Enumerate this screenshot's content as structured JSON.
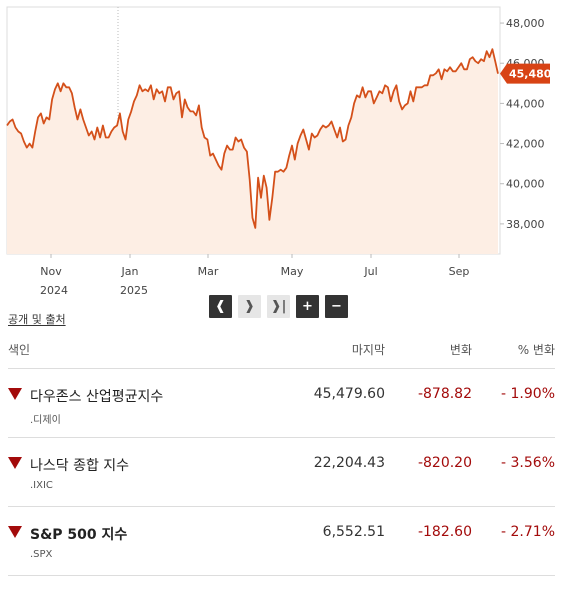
{
  "chart": {
    "y_ticks": [
      "48,000",
      "46,000",
      "44,000",
      "42,000",
      "40,000",
      "38,000"
    ],
    "x_months": [
      "Nov",
      "Jan",
      "Mar",
      "May",
      "Jul",
      "Sep"
    ],
    "x_years": [
      "2024",
      "2025"
    ],
    "last_value_label": "45,480",
    "colors": {
      "line": "#d4501a",
      "fill": "#fdeee4",
      "tag": "#d84315",
      "grid": "#e3e3e3"
    }
  },
  "chart_data": {
    "type": "area",
    "title": "",
    "xlabel": "",
    "ylabel": "",
    "ylim": [
      36500,
      48800
    ],
    "y_ticks": [
      38000,
      40000,
      42000,
      44000,
      46000,
      48000
    ],
    "x_axis": "2024-10 to 2025-10",
    "grid": "vertical at year boundary only, horizontal off",
    "series": [
      {
        "values": [
          42900,
          43100,
          43200,
          42800,
          42600,
          42500,
          42100,
          41800,
          42000,
          41800,
          42600,
          43300,
          43500,
          43000,
          43300,
          43200,
          44200,
          44700,
          45000,
          44600,
          45000,
          44800,
          44800,
          44500,
          43800,
          43200,
          43700,
          43200,
          42800,
          42400,
          42600,
          42200,
          42800,
          42300,
          42900,
          42300,
          42300,
          42600,
          42800,
          42900,
          43500,
          42600,
          42200,
          43200,
          43600,
          44100,
          44400,
          44900,
          44600,
          44700,
          44600,
          44900,
          44200,
          44700,
          44500,
          44600,
          44100,
          44800,
          44800,
          44200,
          44500,
          44600,
          43300,
          44200,
          43800,
          43600,
          43600,
          43400,
          43900,
          42800,
          42300,
          42200,
          41400,
          41500,
          41200,
          40900,
          40700,
          41500,
          41900,
          41700,
          41700,
          42300,
          42100,
          42200,
          41800,
          41600,
          40200,
          38300,
          37800,
          40300,
          39300,
          40400,
          39800,
          38200,
          39300,
          40600,
          40600,
          40700,
          40600,
          40800,
          41400,
          41900,
          41200,
          42000,
          42400,
          42700,
          42200,
          41700,
          42500,
          42300,
          42400,
          42700,
          42900,
          42800,
          42900,
          43100,
          42700,
          42300,
          42800,
          42100,
          42200,
          42900,
          43300,
          44000,
          44400,
          44300,
          44800,
          44300,
          44600,
          44600,
          44000,
          44300,
          44600,
          44500,
          44900,
          44800,
          44100,
          44600,
          44900,
          44100,
          43700,
          43900,
          44000,
          44600,
          44100,
          44800,
          44800,
          44800,
          44900,
          44900,
          45400,
          45400,
          45500,
          45700,
          45200,
          45700,
          45600,
          45800,
          45600,
          45600,
          45800,
          46000,
          45700,
          45700,
          46200,
          46300,
          46100,
          46000,
          46200,
          46100,
          46600,
          46300,
          46700,
          46100,
          45480
        ]
      }
    ],
    "last_value": 45480
  },
  "controls": {
    "prev": "❰",
    "next": "❱",
    "end": "❱|",
    "zoom_in": "+",
    "zoom_out": "−"
  },
  "share_link": "공개 및 출처",
  "table": {
    "headers": {
      "index": "색인",
      "price": "마지막",
      "change": "변화",
      "pct": "% 변화"
    },
    "rows": [
      {
        "name": "다우존스 산업평균지수",
        "symbol": ".디제이",
        "price": "45,479.60",
        "change": "-878.82",
        "pct": "- 1.90%",
        "bold": false
      },
      {
        "name": "나스닥 종합 지수",
        "symbol": ".IXIC",
        "price": "22,204.43",
        "change": "-820.20",
        "pct": "- 3.56%",
        "bold": false
      },
      {
        "name": "S&P 500 지수",
        "symbol": ".SPX",
        "price": "6,552.51",
        "change": "-182.60",
        "pct": "- 2.71%",
        "bold": true
      }
    ]
  }
}
